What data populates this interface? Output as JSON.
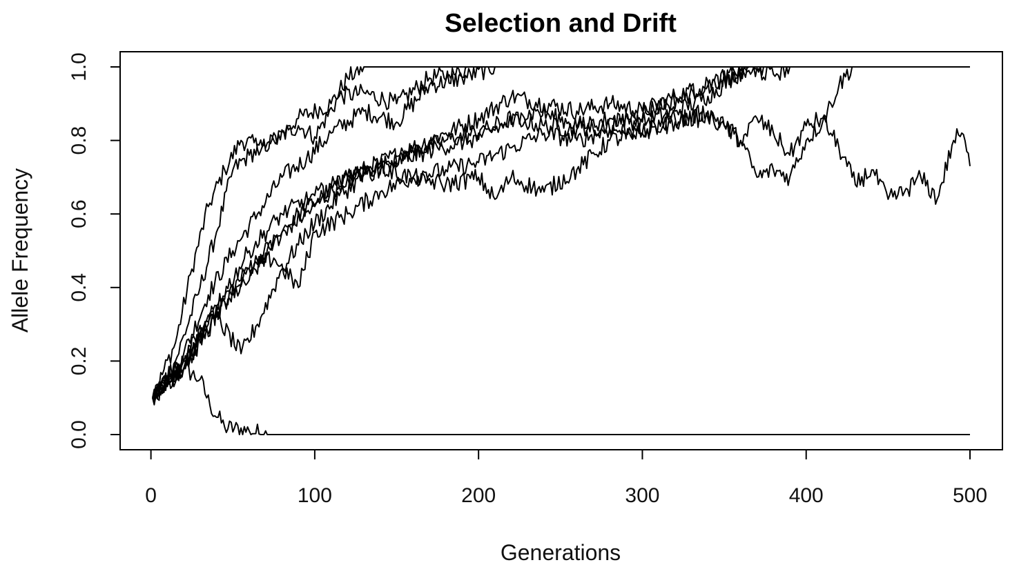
{
  "chart_data": {
    "type": "line",
    "title": "Selection and Drift",
    "xlabel": "Generations",
    "ylabel": "Allele Frequency",
    "xlim": [
      1,
      500
    ],
    "ylim": [
      0,
      1
    ],
    "xticks": [
      0,
      100,
      200,
      300,
      400,
      500
    ],
    "xtick_labels": [
      "0",
      "100",
      "200",
      "300",
      "400",
      "500"
    ],
    "yticks": [
      0,
      0.2,
      0.4,
      0.6,
      0.8,
      1
    ],
    "ytick_labels": [
      "0.0",
      "0.2",
      "0.4",
      "0.6",
      "0.8",
      "1.0"
    ],
    "grid": false,
    "legend": "none",
    "line_color": "#000000",
    "series": [
      {
        "values": [
          [
            1,
            0.1
          ],
          [
            10,
            0.14
          ],
          [
            20,
            0.18
          ],
          [
            30,
            0.15
          ],
          [
            36,
            0.08
          ],
          [
            45,
            0.02
          ],
          [
            60,
            0.01
          ],
          [
            72,
            0.0
          ],
          [
            500,
            0.0
          ]
        ]
      },
      {
        "values": [
          [
            1,
            0.1
          ],
          [
            15,
            0.25
          ],
          [
            25,
            0.45
          ],
          [
            35,
            0.62
          ],
          [
            45,
            0.72
          ],
          [
            55,
            0.8
          ],
          [
            70,
            0.78
          ],
          [
            90,
            0.86
          ],
          [
            110,
            0.9
          ],
          [
            120,
            0.97
          ],
          [
            130,
            1.0
          ],
          [
            500,
            1.0
          ]
        ]
      },
      {
        "values": [
          [
            1,
            0.1
          ],
          [
            15,
            0.2
          ],
          [
            30,
            0.4
          ],
          [
            40,
            0.55
          ],
          [
            50,
            0.72
          ],
          [
            60,
            0.76
          ],
          [
            75,
            0.8
          ],
          [
            90,
            0.84
          ],
          [
            100,
            0.81
          ],
          [
            115,
            0.92
          ],
          [
            130,
            0.93
          ],
          [
            150,
            0.9
          ],
          [
            170,
            0.97
          ],
          [
            185,
            0.98
          ],
          [
            195,
            1.0
          ],
          [
            500,
            1.0
          ]
        ]
      },
      {
        "values": [
          [
            1,
            0.1
          ],
          [
            20,
            0.22
          ],
          [
            35,
            0.38
          ],
          [
            50,
            0.5
          ],
          [
            65,
            0.6
          ],
          [
            80,
            0.7
          ],
          [
            95,
            0.75
          ],
          [
            110,
            0.82
          ],
          [
            130,
            0.88
          ],
          [
            150,
            0.85
          ],
          [
            170,
            0.95
          ],
          [
            190,
            0.97
          ],
          [
            210,
            1.0
          ],
          [
            500,
            1.0
          ]
        ]
      },
      {
        "values": [
          [
            1,
            0.1
          ],
          [
            20,
            0.18
          ],
          [
            35,
            0.3
          ],
          [
            50,
            0.38
          ],
          [
            60,
            0.42
          ],
          [
            75,
            0.52
          ],
          [
            90,
            0.6
          ],
          [
            105,
            0.65
          ],
          [
            120,
            0.7
          ],
          [
            140,
            0.74
          ],
          [
            160,
            0.78
          ],
          [
            180,
            0.82
          ],
          [
            200,
            0.86
          ],
          [
            220,
            0.92
          ],
          [
            240,
            0.9
          ],
          [
            260,
            0.88
          ],
          [
            280,
            0.9
          ],
          [
            300,
            0.88
          ],
          [
            320,
            0.92
          ],
          [
            340,
            0.95
          ],
          [
            360,
            0.99
          ],
          [
            375,
            1.0
          ],
          [
            500,
            1.0
          ]
        ]
      },
      {
        "values": [
          [
            1,
            0.1
          ],
          [
            20,
            0.2
          ],
          [
            40,
            0.35
          ],
          [
            60,
            0.45
          ],
          [
            80,
            0.55
          ],
          [
            100,
            0.62
          ],
          [
            120,
            0.7
          ],
          [
            140,
            0.73
          ],
          [
            160,
            0.77
          ],
          [
            180,
            0.8
          ],
          [
            200,
            0.82
          ],
          [
            220,
            0.86
          ],
          [
            240,
            0.84
          ],
          [
            260,
            0.83
          ],
          [
            280,
            0.86
          ],
          [
            300,
            0.85
          ],
          [
            320,
            0.88
          ],
          [
            340,
            0.92
          ],
          [
            355,
            0.97
          ],
          [
            365,
            1.0
          ],
          [
            500,
            1.0
          ]
        ]
      },
      {
        "values": [
          [
            1,
            0.1
          ],
          [
            20,
            0.18
          ],
          [
            40,
            0.32
          ],
          [
            55,
            0.22
          ],
          [
            65,
            0.3
          ],
          [
            80,
            0.45
          ],
          [
            95,
            0.55
          ],
          [
            115,
            0.65
          ],
          [
            135,
            0.72
          ],
          [
            155,
            0.75
          ],
          [
            175,
            0.78
          ],
          [
            195,
            0.8
          ],
          [
            215,
            0.84
          ],
          [
            235,
            0.88
          ],
          [
            255,
            0.85
          ],
          [
            275,
            0.83
          ],
          [
            295,
            0.87
          ],
          [
            315,
            0.9
          ],
          [
            335,
            0.94
          ],
          [
            350,
            0.97
          ],
          [
            365,
            0.99
          ],
          [
            380,
            0.98
          ],
          [
            390,
            1.0
          ],
          [
            500,
            1.0
          ]
        ]
      },
      {
        "values": [
          [
            1,
            0.1
          ],
          [
            20,
            0.2
          ],
          [
            40,
            0.33
          ],
          [
            60,
            0.45
          ],
          [
            75,
            0.48
          ],
          [
            90,
            0.4
          ],
          [
            100,
            0.55
          ],
          [
            120,
            0.6
          ],
          [
            140,
            0.66
          ],
          [
            160,
            0.7
          ],
          [
            180,
            0.72
          ],
          [
            200,
            0.74
          ],
          [
            220,
            0.78
          ],
          [
            240,
            0.82
          ],
          [
            260,
            0.8
          ],
          [
            280,
            0.83
          ],
          [
            300,
            0.82
          ],
          [
            320,
            0.85
          ],
          [
            340,
            0.88
          ],
          [
            350,
            0.84
          ],
          [
            360,
            0.8
          ],
          [
            370,
            0.7
          ],
          [
            380,
            0.72
          ],
          [
            390,
            0.7
          ],
          [
            400,
            0.8
          ],
          [
            410,
            0.85
          ],
          [
            420,
            0.95
          ],
          [
            428,
            1.0
          ],
          [
            500,
            1.0
          ]
        ]
      },
      {
        "values": [
          [
            1,
            0.1
          ],
          [
            20,
            0.18
          ],
          [
            40,
            0.35
          ],
          [
            60,
            0.5
          ],
          [
            80,
            0.6
          ],
          [
            100,
            0.65
          ],
          [
            120,
            0.7
          ],
          [
            140,
            0.72
          ],
          [
            160,
            0.7
          ],
          [
            180,
            0.68
          ],
          [
            200,
            0.7
          ],
          [
            210,
            0.64
          ],
          [
            220,
            0.7
          ],
          [
            240,
            0.66
          ],
          [
            260,
            0.72
          ],
          [
            280,
            0.8
          ],
          [
            300,
            0.82
          ],
          [
            320,
            0.86
          ],
          [
            340,
            0.86
          ],
          [
            350,
            0.84
          ],
          [
            360,
            0.8
          ],
          [
            370,
            0.86
          ],
          [
            380,
            0.82
          ],
          [
            390,
            0.76
          ],
          [
            400,
            0.84
          ],
          [
            410,
            0.86
          ],
          [
            420,
            0.78
          ],
          [
            430,
            0.68
          ],
          [
            440,
            0.72
          ],
          [
            450,
            0.64
          ],
          [
            460,
            0.66
          ],
          [
            470,
            0.7
          ],
          [
            480,
            0.64
          ],
          [
            490,
            0.8
          ],
          [
            495,
            0.82
          ],
          [
            500,
            0.73
          ]
        ]
      }
    ]
  }
}
